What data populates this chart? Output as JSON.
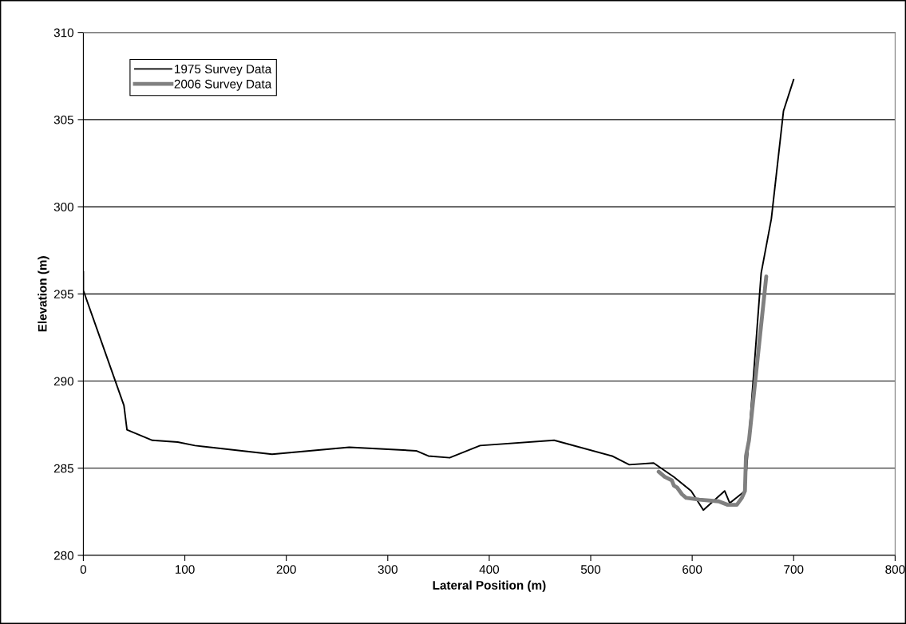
{
  "chart_data": {
    "type": "line",
    "xlabel": "Lateral Position (m)",
    "ylabel": "Elevation (m)",
    "xlim": [
      0,
      800
    ],
    "xticks": [
      0,
      100,
      200,
      300,
      400,
      500,
      600,
      700,
      800
    ],
    "ylim": [
      280,
      310
    ],
    "yticks": [
      280,
      285,
      290,
      295,
      300,
      305,
      310
    ],
    "grid": "y",
    "legend": "top left",
    "marker": "none",
    "line_style": "solid",
    "series": [
      {
        "name": "1975 Survey Data",
        "color": "#000000",
        "x": [
          0,
          0,
          40,
          43,
          68,
          93,
          110,
          186,
          262,
          328,
          340,
          361,
          391,
          464,
          521,
          538,
          562,
          582,
          599,
          611,
          632,
          637,
          652,
          668,
          678,
          690,
          700
        ],
        "values": [
          296.3,
          295.2,
          288.6,
          287.2,
          286.6,
          286.5,
          286.3,
          285.8,
          286.2,
          286.0,
          285.7,
          285.6,
          286.3,
          286.6,
          285.7,
          285.2,
          285.3,
          284.5,
          283.7,
          282.6,
          283.7,
          283.0,
          283.7,
          296.2,
          299.3,
          305.5,
          307.3
        ]
      },
      {
        "name": "2006 Survey Data",
        "color": "#808080",
        "x": [
          567,
          573,
          580,
          582,
          585,
          590,
          594,
          607,
          626,
          635,
          644,
          649,
          652,
          653,
          656,
          673
        ],
        "values": [
          284.8,
          284.5,
          284.3,
          284.0,
          283.9,
          283.5,
          283.3,
          283.2,
          283.1,
          282.9,
          282.9,
          283.3,
          283.7,
          285.7,
          286.6,
          296.0
        ]
      }
    ]
  }
}
